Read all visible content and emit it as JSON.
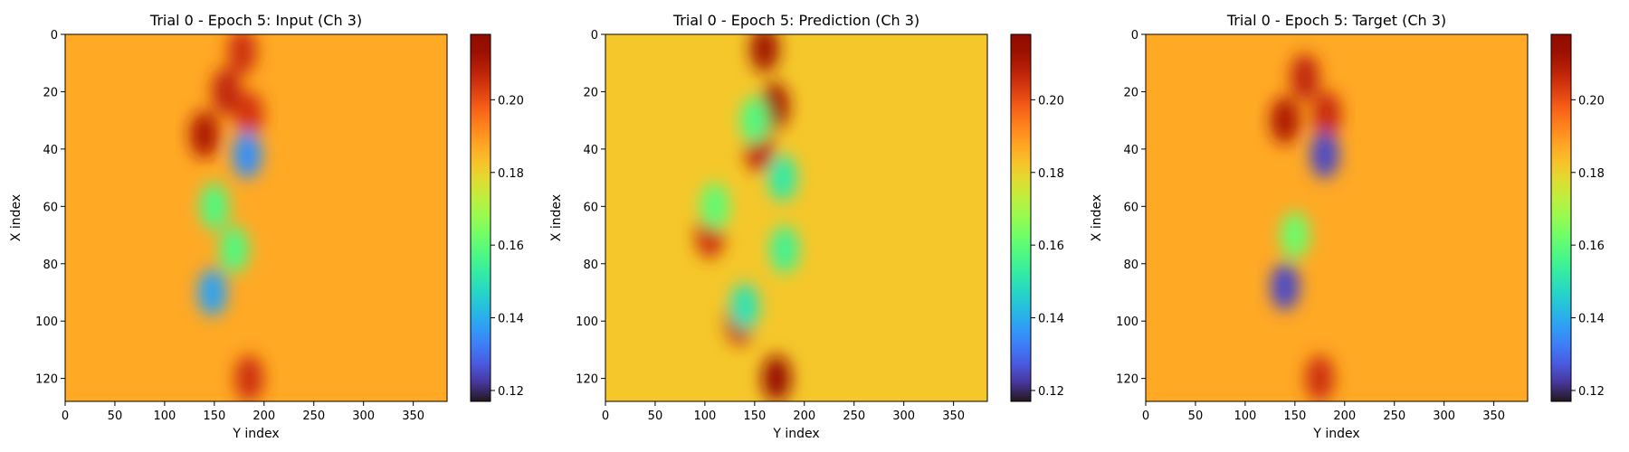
{
  "chart_data": [
    {
      "type": "heatmap",
      "title": "Trial 0 - Epoch 5: Input (Ch 3)",
      "xlabel": "Y index",
      "ylabel": "X index",
      "xlim": [
        0,
        384
      ],
      "ylim": [
        128,
        0
      ],
      "x_ticks": [
        0,
        50,
        100,
        150,
        200,
        250,
        300,
        350
      ],
      "y_ticks": [
        0,
        20,
        40,
        60,
        80,
        100,
        120
      ],
      "colorbar": {
        "min": 0.117,
        "max": 0.218,
        "ticks": [
          "0.12",
          "0.14",
          "0.16",
          "0.18",
          "0.20"
        ],
        "colormap": "turbo"
      },
      "background_value": 0.187,
      "features": [
        {
          "note": "high",
          "x": 35,
          "y": 140,
          "value": 0.21
        },
        {
          "note": "high",
          "x": 20,
          "y": 162,
          "value": 0.207
        },
        {
          "note": "high",
          "x": 6,
          "y": 178,
          "value": 0.205
        },
        {
          "note": "high",
          "x": 28,
          "y": 185,
          "value": 0.204
        },
        {
          "note": "high",
          "x": 120,
          "y": 185,
          "value": 0.205
        },
        {
          "note": "low",
          "x": 42,
          "y": 183,
          "value": 0.135
        },
        {
          "note": "low",
          "x": 90,
          "y": 148,
          "value": 0.138
        },
        {
          "note": "low",
          "x": 60,
          "y": 150,
          "value": 0.158
        },
        {
          "note": "low",
          "x": 75,
          "y": 170,
          "value": 0.158
        }
      ]
    },
    {
      "type": "heatmap",
      "title": "Trial 0 - Epoch 5: Prediction (Ch 3)",
      "xlabel": "Y index",
      "ylabel": "X index",
      "xlim": [
        0,
        384
      ],
      "ylim": [
        128,
        0
      ],
      "x_ticks": [
        0,
        50,
        100,
        150,
        200,
        250,
        300,
        350
      ],
      "y_ticks": [
        0,
        20,
        40,
        60,
        80,
        100,
        120
      ],
      "colorbar": {
        "min": 0.117,
        "max": 0.218,
        "ticks": [
          "0.12",
          "0.14",
          "0.16",
          "0.18",
          "0.20"
        ],
        "colormap": "turbo"
      },
      "background_value": 0.182,
      "features": [
        {
          "note": "high",
          "x": 5,
          "y": 160,
          "value": 0.212
        },
        {
          "note": "high",
          "x": 25,
          "y": 170,
          "value": 0.212
        },
        {
          "note": "high",
          "x": 40,
          "y": 155,
          "value": 0.207
        },
        {
          "note": "high",
          "x": 70,
          "y": 105,
          "value": 0.205
        },
        {
          "note": "high",
          "x": 100,
          "y": 135,
          "value": 0.207
        },
        {
          "note": "high",
          "x": 120,
          "y": 172,
          "value": 0.214
        },
        {
          "note": "low",
          "x": 30,
          "y": 150,
          "value": 0.158
        },
        {
          "note": "low",
          "x": 50,
          "y": 178,
          "value": 0.152
        },
        {
          "note": "low",
          "x": 75,
          "y": 180,
          "value": 0.155
        },
        {
          "note": "low",
          "x": 95,
          "y": 140,
          "value": 0.15
        },
        {
          "note": "low",
          "x": 60,
          "y": 110,
          "value": 0.16
        }
      ]
    },
    {
      "type": "heatmap",
      "title": "Trial 0 - Epoch 5: Target (Ch 3)",
      "xlabel": "Y index",
      "ylabel": "X index",
      "xlim": [
        0,
        384
      ],
      "ylim": [
        128,
        0
      ],
      "x_ticks": [
        0,
        50,
        100,
        150,
        200,
        250,
        300,
        350
      ],
      "y_ticks": [
        0,
        20,
        40,
        60,
        80,
        100,
        120
      ],
      "colorbar": {
        "min": 0.117,
        "max": 0.218,
        "ticks": [
          "0.12",
          "0.14",
          "0.16",
          "0.18",
          "0.20"
        ],
        "colormap": "turbo"
      },
      "background_value": 0.187,
      "features": [
        {
          "note": "high",
          "x": 30,
          "y": 140,
          "value": 0.21
        },
        {
          "note": "high",
          "x": 15,
          "y": 160,
          "value": 0.207
        },
        {
          "note": "high",
          "x": 28,
          "y": 182,
          "value": 0.206
        },
        {
          "note": "high",
          "x": 120,
          "y": 175,
          "value": 0.205
        },
        {
          "note": "low",
          "x": 42,
          "y": 180,
          "value": 0.125
        },
        {
          "note": "low",
          "x": 88,
          "y": 140,
          "value": 0.125
        },
        {
          "note": "low",
          "x": 70,
          "y": 150,
          "value": 0.162
        }
      ]
    }
  ]
}
